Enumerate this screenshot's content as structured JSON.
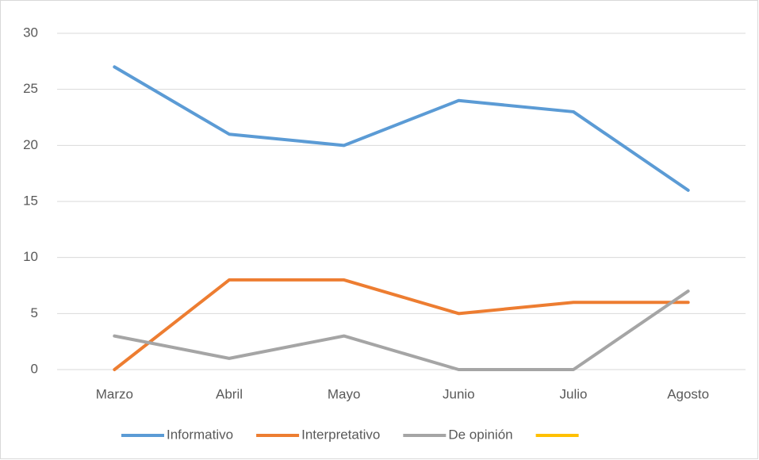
{
  "chart_data": {
    "type": "line",
    "categories": [
      "Marzo",
      "Abril",
      "Mayo",
      "Junio",
      "Julio",
      "Agosto"
    ],
    "series": [
      {
        "name": "Informativo",
        "color": "#5b9bd5",
        "values": [
          27,
          21,
          20,
          24,
          23,
          16
        ]
      },
      {
        "name": "Interpretativo",
        "color": "#ed7d31",
        "values": [
          0,
          8,
          8,
          5,
          6,
          6
        ]
      },
      {
        "name": "De opinión",
        "color": "#a5a5a5",
        "values": [
          3,
          1,
          3,
          0,
          0,
          7
        ]
      },
      {
        "color": "#ffc000",
        "values": [
          null,
          null,
          null,
          null,
          null,
          null
        ]
      }
    ],
    "ylim": [
      0,
      30
    ],
    "yticks": [
      0,
      5,
      10,
      15,
      20,
      25,
      30
    ],
    "grid": true,
    "legend": "bottom"
  }
}
